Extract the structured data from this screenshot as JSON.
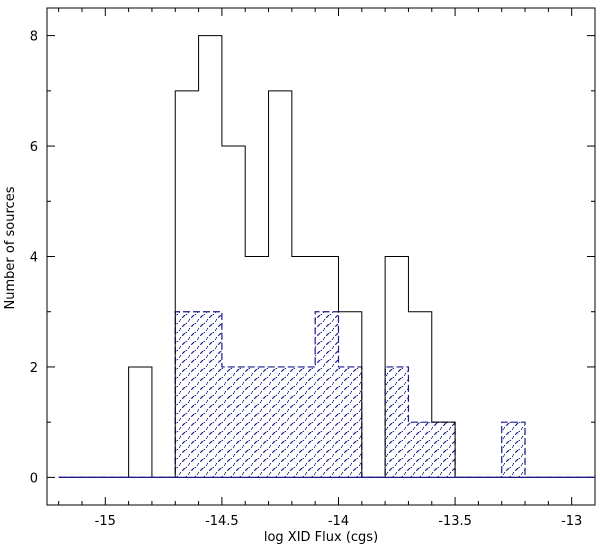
{
  "chart_data": {
    "type": "histogram",
    "xlabel": "log XID Flux (cgs)",
    "ylabel": "Number of sources",
    "xlim": [
      -15.25,
      -12.9
    ],
    "ylim": [
      -0.5,
      8.5
    ],
    "bin_width": 0.1,
    "bin_start": -15.2,
    "xticks": [
      -15,
      -14.5,
      -14,
      -13.5,
      -13
    ],
    "xtick_labels": [
      "-15",
      "-14.5",
      "-14",
      "-13.5",
      "-13"
    ],
    "yticks": [
      0,
      2,
      4,
      6,
      8
    ],
    "ytick_labels": [
      "0",
      "2",
      "4",
      "6",
      "8"
    ],
    "series": [
      {
        "style": "outline",
        "color": "#000000",
        "values": [
          0,
          0,
          0,
          2,
          0,
          7,
          8,
          6,
          4,
          7,
          4,
          4,
          3,
          0,
          4,
          3,
          1,
          0,
          0,
          0,
          0,
          0,
          0
        ]
      },
      {
        "style": "hatched",
        "color": "#1a1a8c",
        "values": [
          0,
          0,
          0,
          0,
          0,
          3,
          3,
          2,
          2,
          2,
          2,
          3,
          2,
          0,
          2,
          1,
          1,
          0,
          0,
          1,
          0,
          0,
          0
        ]
      }
    ]
  }
}
